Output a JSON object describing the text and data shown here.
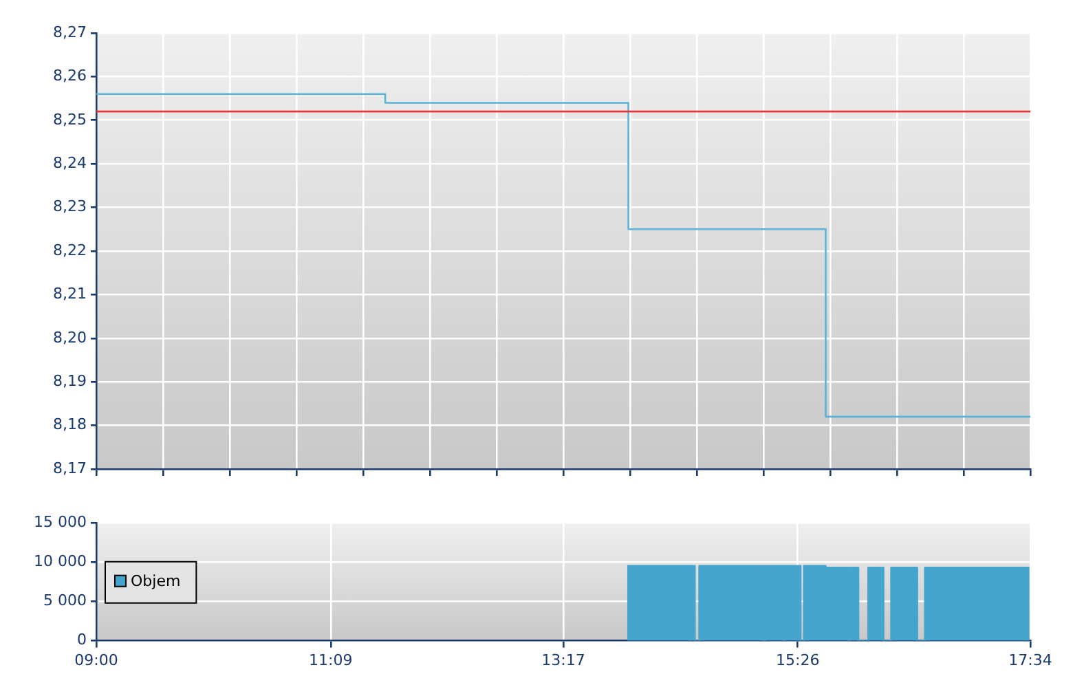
{
  "chart_data": [
    {
      "type": "step",
      "xlim": [
        9,
        17.567
      ],
      "xticks": [
        {
          "value": 9,
          "label": null
        },
        {
          "value": 9.612,
          "label": null
        },
        {
          "value": 10.224,
          "label": null
        },
        {
          "value": 10.836,
          "label": null
        },
        {
          "value": 11.448,
          "label": null
        },
        {
          "value": 12.06,
          "label": null
        },
        {
          "value": 12.671,
          "label": null
        },
        {
          "value": 13.283,
          "label": null
        },
        {
          "value": 13.895,
          "label": null
        },
        {
          "value": 14.507,
          "label": null
        },
        {
          "value": 15.119,
          "label": null
        },
        {
          "value": 15.731,
          "label": null
        },
        {
          "value": 16.343,
          "label": null
        },
        {
          "value": 16.955,
          "label": null
        },
        {
          "value": 17.567,
          "label": null
        }
      ],
      "ylim": [
        8.17,
        8.27
      ],
      "yticks": [
        {
          "value": 8.17,
          "label": "8,17"
        },
        {
          "value": 8.18,
          "label": "8,18"
        },
        {
          "value": 8.19,
          "label": "8,19"
        },
        {
          "value": 8.2,
          "label": "8,20"
        },
        {
          "value": 8.21,
          "label": "8,21"
        },
        {
          "value": 8.22,
          "label": "8,22"
        },
        {
          "value": 8.23,
          "label": "8,23"
        },
        {
          "value": 8.24,
          "label": "8,24"
        },
        {
          "value": 8.25,
          "label": "8,25"
        },
        {
          "value": 8.26,
          "label": "8,26"
        },
        {
          "value": 8.27,
          "label": "8,27"
        }
      ],
      "tick_labels": "y",
      "grid": true,
      "legend": false,
      "marker": "none",
      "series": [
        {
          "color": "#5ab4d8",
          "x": [
            9,
            11.65,
            13.88,
            15.69,
            17.567
          ],
          "values": [
            8.256,
            8.254,
            8.225,
            8.182,
            8.182
          ]
        }
      ],
      "ref_lines": [
        {
          "axis": "y",
          "value": 8.252,
          "color": "#e8383c"
        }
      ]
    },
    {
      "type": "area",
      "xlim": [
        9,
        17.567
      ],
      "xticks": [
        {
          "value": 9,
          "label": "09:00"
        },
        {
          "value": 11.15,
          "label": "11:09"
        },
        {
          "value": 13.283,
          "label": "13:17"
        },
        {
          "value": 15.433,
          "label": "15:26"
        },
        {
          "value": 17.567,
          "label": "17:34"
        }
      ],
      "ylim": [
        0,
        15000
      ],
      "yticks": [
        {
          "value": 0,
          "label": "0"
        },
        {
          "value": 5000,
          "label": "5 000"
        },
        {
          "value": 10000,
          "label": "10 000"
        },
        {
          "value": 15000,
          "label": "15 000"
        }
      ],
      "grid": true,
      "legend": "left",
      "marker": "none",
      "series": [
        {
          "name": "Objem",
          "color": "#46a5cc",
          "x": [
            13.87,
            14.44,
            14.45,
            14.49,
            14.53,
            15.12,
            15.13,
            15.3,
            15.31,
            15.46,
            15.49,
            15.69,
            15.9,
            15.91,
            15.99,
            16.08,
            16.22,
            16.29,
            16.53,
            16.6,
            17.55
          ],
          "values": [
            9500,
            0,
            9500,
            0,
            9500,
            0,
            9500,
            0,
            9500,
            0,
            9500,
            9300,
            0,
            9300,
            0,
            9300,
            0,
            9300,
            0,
            9300,
            0
          ]
        }
      ]
    }
  ]
}
